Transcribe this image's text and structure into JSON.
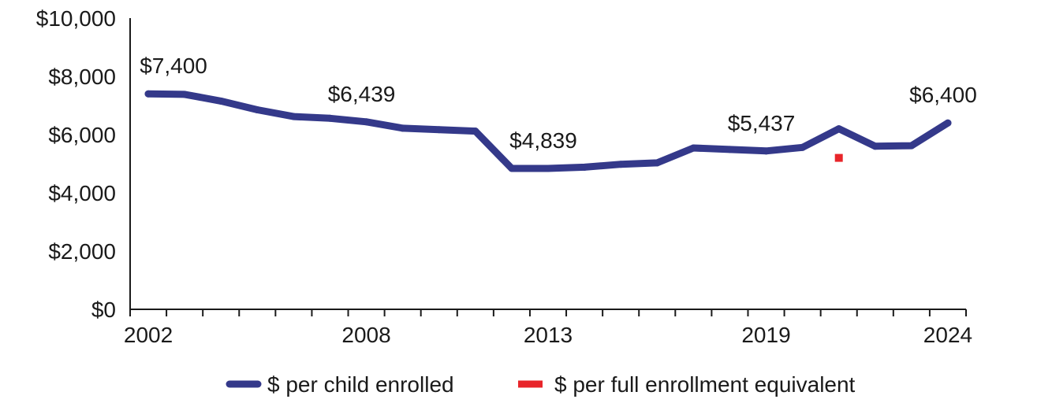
{
  "chart_data": {
    "type": "line",
    "x": [
      2002,
      2003,
      2004,
      2005,
      2006,
      2007,
      2008,
      2009,
      2010,
      2011,
      2012,
      2013,
      2014,
      2015,
      2016,
      2017,
      2018,
      2019,
      2020,
      2021,
      2022,
      2023,
      2024
    ],
    "series": [
      {
        "name": "$ per child enrolled",
        "color": "#34398a",
        "values": [
          7400,
          7380,
          7150,
          6850,
          6620,
          6560,
          6439,
          6220,
          6170,
          6120,
          4839,
          4839,
          4880,
          4980,
          5030,
          5540,
          5490,
          5437,
          5560,
          6200,
          5600,
          5620,
          6400
        ]
      },
      {
        "name": "$ per full enrollment equivalent",
        "color": "#e8252a",
        "points": [
          {
            "x": 2021,
            "y": 5200
          }
        ]
      }
    ],
    "data_labels": [
      {
        "x": 2002,
        "text": "$7,400"
      },
      {
        "x": 2008,
        "text": "$6,439"
      },
      {
        "x": 2013,
        "text": "$4,839"
      },
      {
        "x": 2019,
        "text": "$5,437"
      },
      {
        "x": 2024,
        "text": "$6,400"
      }
    ],
    "y_ticks": [
      {
        "value": 0,
        "label": "$0"
      },
      {
        "value": 2000,
        "label": "$2,000"
      },
      {
        "value": 4000,
        "label": "$4,000"
      },
      {
        "value": 6000,
        "label": "$6,000"
      },
      {
        "value": 8000,
        "label": "$8,000"
      },
      {
        "value": 10000,
        "label": "$10,000"
      }
    ],
    "x_tick_labels": [
      {
        "value": 2002,
        "label": "2002"
      },
      {
        "value": 2008,
        "label": "2008"
      },
      {
        "value": 2013,
        "label": "2013"
      },
      {
        "value": 2019,
        "label": "2019"
      },
      {
        "value": 2024,
        "label": "2024"
      }
    ],
    "ylim": [
      0,
      10000
    ],
    "xlim": [
      2002,
      2024
    ],
    "grid": false,
    "legend_position": "bottom-center"
  }
}
